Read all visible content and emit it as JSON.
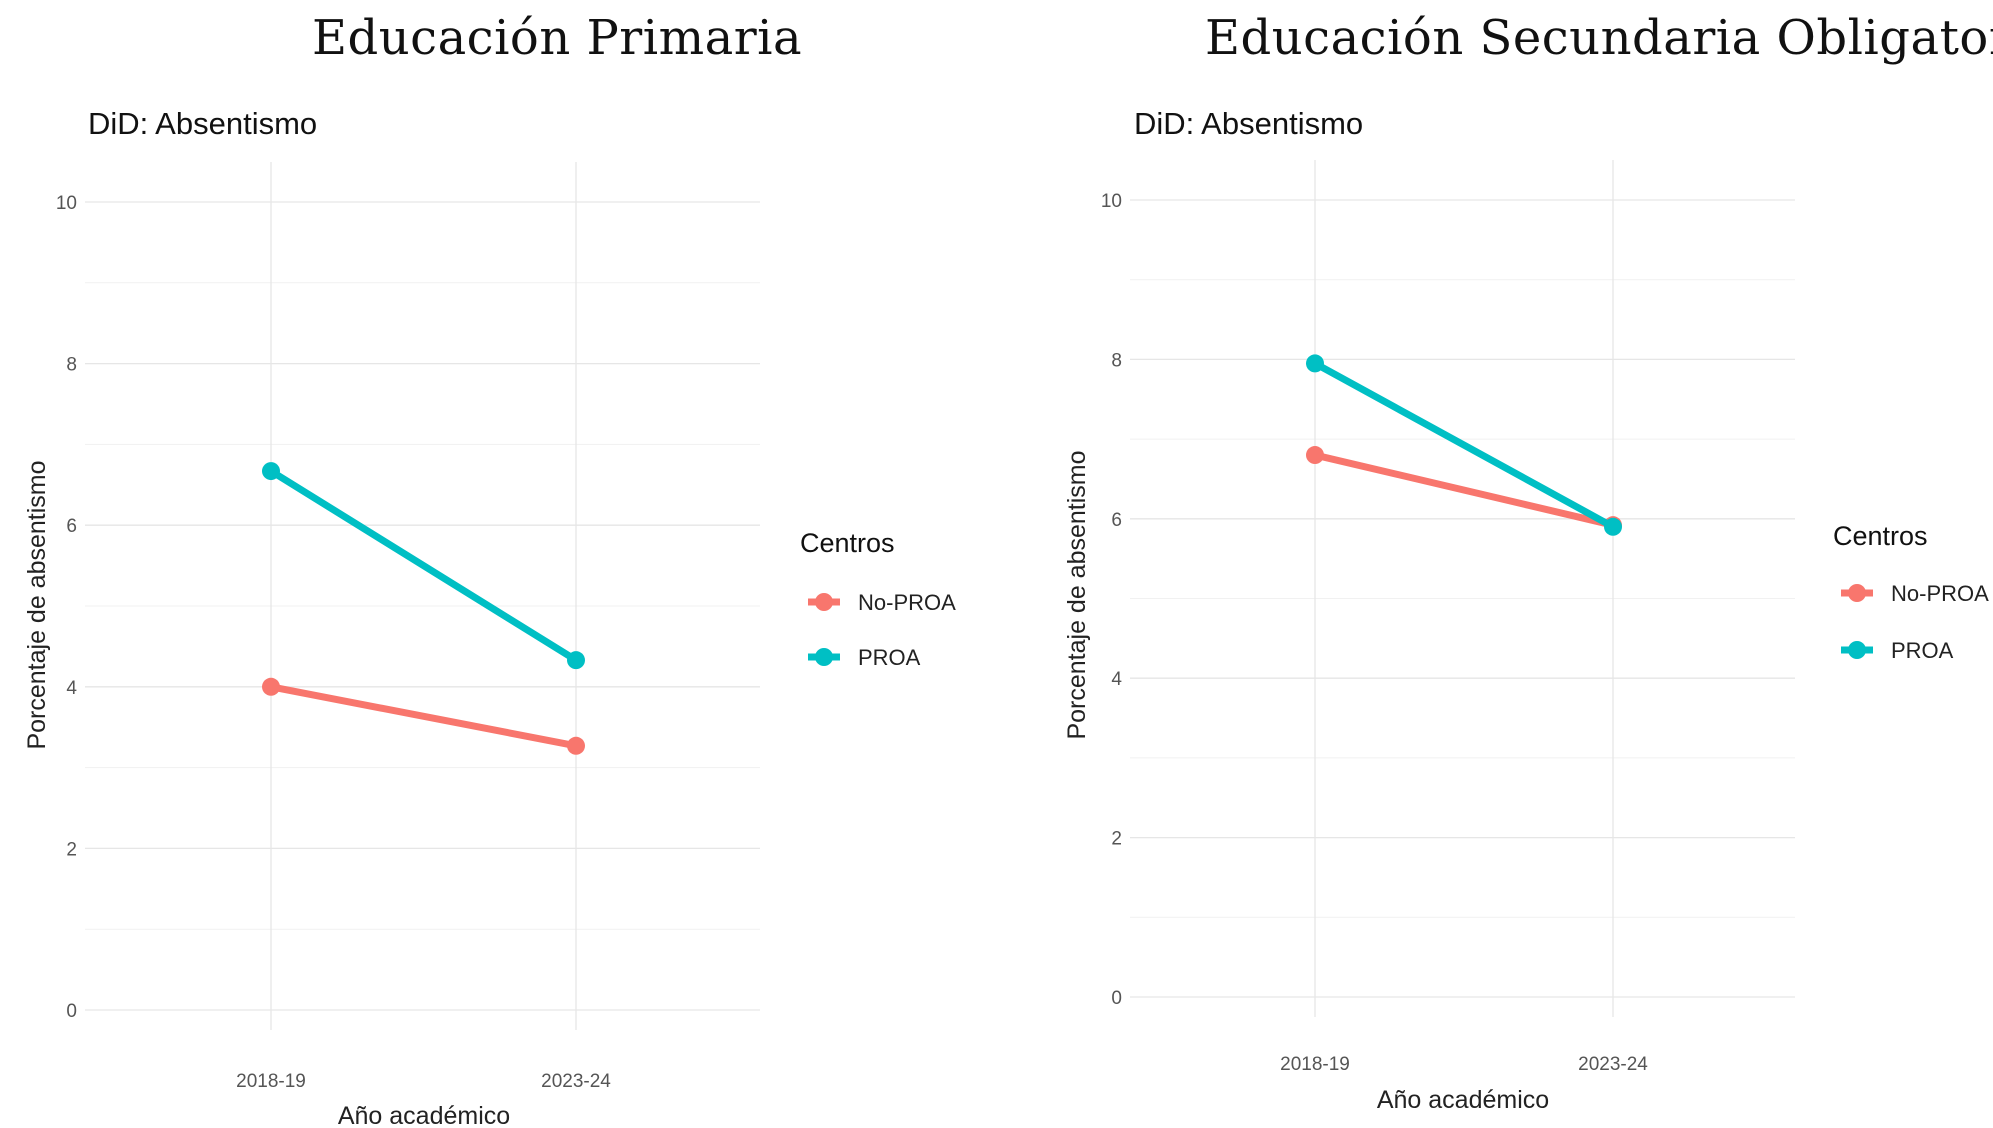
{
  "chart_data": [
    {
      "type": "line",
      "title": "Educación Primaria",
      "subtitle": "DiD: Absentismo",
      "xlabel": "Año académico",
      "ylabel": "Porcentaje de absentismo",
      "categories": [
        "2018-19",
        "2023-24"
      ],
      "yticks": [
        "0",
        "2",
        "4",
        "6",
        "8",
        "10"
      ],
      "ylim": [
        0,
        10
      ],
      "grid": true,
      "legend": {
        "title": "Centros",
        "position": "right"
      },
      "series": [
        {
          "name": "No-PROA",
          "color": "#f8766d",
          "values": [
            4.0,
            3.27
          ]
        },
        {
          "name": "PROA",
          "color": "#00bfc4",
          "values": [
            6.67,
            4.33
          ]
        }
      ]
    },
    {
      "type": "line",
      "title": "Educación Secundaria Obligatoria",
      "subtitle": "DiD: Absentismo",
      "xlabel": "Año académico",
      "ylabel": "Porcentaje de absentismo",
      "categories": [
        "2018-19",
        "2023-24"
      ],
      "yticks": [
        "0",
        "2",
        "4",
        "6",
        "8",
        "10"
      ],
      "ylim": [
        0,
        10
      ],
      "grid": true,
      "legend": {
        "title": "Centros",
        "position": "right"
      },
      "series": [
        {
          "name": "No-PROA",
          "color": "#f8766d",
          "values": [
            6.8,
            5.92
          ]
        },
        {
          "name": "PROA",
          "color": "#00bfc4",
          "values": [
            7.95,
            5.9
          ]
        }
      ]
    }
  ]
}
